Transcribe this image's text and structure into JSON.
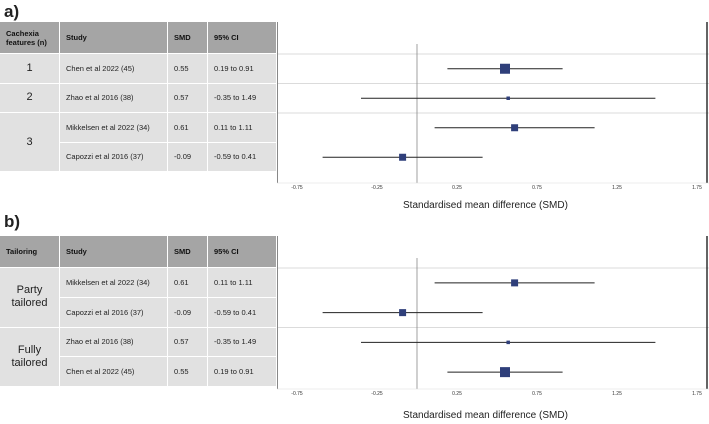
{
  "panels": [
    {
      "label": "a)",
      "headers": [
        "Cachexia features (n)",
        "Study",
        "SMD",
        "95% CI"
      ],
      "groups": [
        {
          "label": "1",
          "rows": 1
        },
        {
          "label": "2",
          "rows": 1
        },
        {
          "label": "3",
          "rows": 2
        }
      ],
      "rows": [
        {
          "study": "Chen et al 2022 (45)",
          "smd": "0.55",
          "ci": "0.19 to 0.91"
        },
        {
          "study": "Zhao et al 2016 (38)",
          "smd": "0.57",
          "ci": "-0.35 to 1.49"
        },
        {
          "study": "Mikkelsen et al 2022 (34)",
          "smd": "0.61",
          "ci": "0.11 to 1.11"
        },
        {
          "study": "Capozzi et al 2016 (37)",
          "smd": "-0.09",
          "ci": "-0.59 to 0.41"
        }
      ],
      "axis_title": "Standardised mean difference (SMD)"
    },
    {
      "label": "b)",
      "headers": [
        "Tailoring",
        "Study",
        "SMD",
        "95% CI"
      ],
      "groups": [
        {
          "label": "Party tailored",
          "rows": 2
        },
        {
          "label": "Fully tailored",
          "rows": 2
        }
      ],
      "rows": [
        {
          "study": "Mikkelsen et al 2022 (34)",
          "smd": "0.61",
          "ci": "0.11 to 1.11"
        },
        {
          "study": "Capozzi et al 2016 (37)",
          "smd": "-0.09",
          "ci": "-0.59 to 0.41"
        },
        {
          "study": "Zhao et al 2016 (38)",
          "smd": "0.57",
          "ci": "-0.35 to 1.49"
        },
        {
          "study": "Chen et al 2022 (45)",
          "smd": "0.55",
          "ci": "0.19 to 0.91"
        }
      ],
      "axis_title": "Standardised mean difference (SMD)"
    }
  ],
  "chart_data": [
    {
      "type": "scatter",
      "title": "a)",
      "xlabel": "Standardised mean difference (SMD)",
      "xlim": [
        -0.75,
        1.75
      ],
      "xticks": [
        "-0.75",
        "-0.25",
        "0.25",
        "0.75",
        "1.25",
        "1.75"
      ],
      "reference_line": 0,
      "points": [
        {
          "study": "Chen et al 2022 (45)",
          "smd": 0.55,
          "lo": 0.19,
          "hi": 0.91,
          "weight": 3
        },
        {
          "study": "Zhao et al 2016 (38)",
          "smd": 0.57,
          "lo": -0.35,
          "hi": 1.49,
          "weight": 1
        },
        {
          "study": "Mikkelsen et al 2022 (34)",
          "smd": 0.61,
          "lo": 0.11,
          "hi": 1.11,
          "weight": 2
        },
        {
          "study": "Capozzi et al 2016 (37)",
          "smd": -0.09,
          "lo": -0.59,
          "hi": 0.41,
          "weight": 2
        }
      ]
    },
    {
      "type": "scatter",
      "title": "b)",
      "xlabel": "Standardised mean difference (SMD)",
      "xlim": [
        -0.75,
        1.75
      ],
      "xticks": [
        "-0.75",
        "-0.25",
        "0.25",
        "0.75",
        "1.25",
        "1.75"
      ],
      "reference_line": 0,
      "points": [
        {
          "study": "Mikkelsen et al 2022 (34)",
          "smd": 0.61,
          "lo": 0.11,
          "hi": 1.11,
          "weight": 2
        },
        {
          "study": "Capozzi et al 2016 (37)",
          "smd": -0.09,
          "lo": -0.59,
          "hi": 0.41,
          "weight": 2
        },
        {
          "study": "Zhao et al 2016 (38)",
          "smd": 0.57,
          "lo": -0.35,
          "hi": 1.49,
          "weight": 1
        },
        {
          "study": "Chen et al 2022 (45)",
          "smd": 0.55,
          "lo": 0.19,
          "hi": 0.91,
          "weight": 3
        }
      ]
    }
  ],
  "colors": {
    "marker": "#2f3f7a",
    "header_bg": "#a5a5a5",
    "cell_bg": "#e1e1e1",
    "line": "#222222",
    "reference": "#888888"
  }
}
